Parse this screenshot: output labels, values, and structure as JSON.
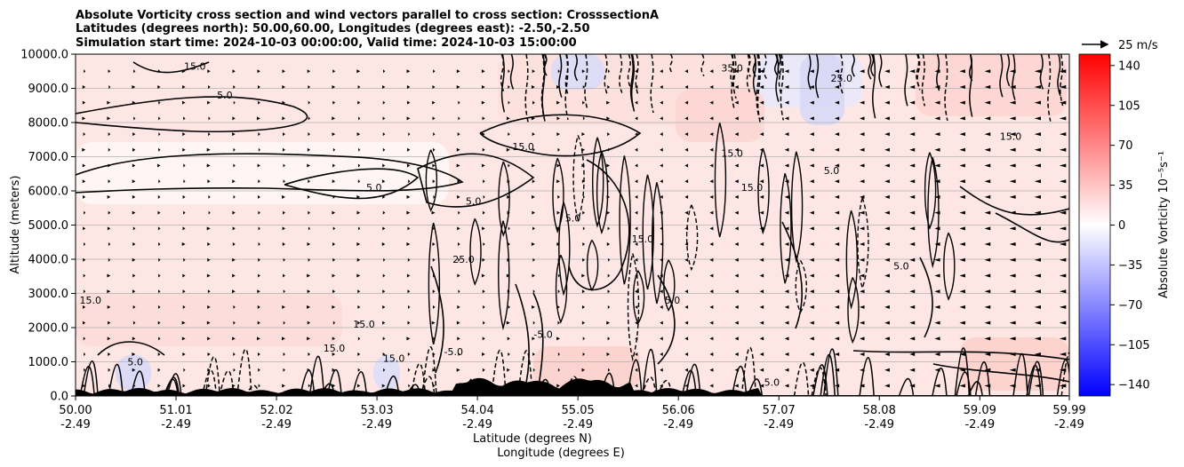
{
  "chart_data": {
    "type": "heatmap",
    "title_lines": [
      "Absolute Vorticity cross section and wind vectors parallel to cross section: CrosssectionA",
      "Latitudes (degrees north): 50.00,60.00, Longitudes (degrees east): -2.50,-2.50",
      "Simulation start time: 2024-10-03 00:00:00, Valid time: 2024-10-03 15:00:00"
    ],
    "ylabel": "Altitude (meters)",
    "xlabel_lines": [
      "Latitude (degrees N)",
      "Longitude (degrees E)"
    ],
    "ylim": [
      0,
      10000
    ],
    "xlim": [
      50.0,
      59.99
    ],
    "y_ticks": [
      "0.0",
      "1000.0",
      "2000.0",
      "3000.0",
      "4000.0",
      "5000.0",
      "6000.0",
      "7000.0",
      "8000.0",
      "9000.0",
      "10000.0"
    ],
    "x_ticks": [
      {
        "lat": "50.00",
        "lon": "-2.49"
      },
      {
        "lat": "51.01",
        "lon": "-2.49"
      },
      {
        "lat": "52.02",
        "lon": "-2.49"
      },
      {
        "lat": "53.03",
        "lon": "-2.49"
      },
      {
        "lat": "54.04",
        "lon": "-2.49"
      },
      {
        "lat": "55.05",
        "lon": "-2.49"
      },
      {
        "lat": "56.06",
        "lon": "-2.49"
      },
      {
        "lat": "57.07",
        "lon": "-2.49"
      },
      {
        "lat": "58.08",
        "lon": "-2.49"
      },
      {
        "lat": "59.09",
        "lon": "-2.49"
      },
      {
        "lat": "59.99",
        "lon": "-2.49"
      }
    ],
    "horizontal_grid": true,
    "colorbar": {
      "label": "Absolute Vorticity 10⁻⁵s⁻¹",
      "range": [
        -150,
        150
      ],
      "ticks": [
        "140",
        "105",
        "70",
        "35",
        "0",
        "−35",
        "−70",
        "−105",
        "−140"
      ],
      "tick_values": [
        140,
        105,
        70,
        35,
        0,
        -35,
        -70,
        -105,
        -140
      ],
      "colormap": "bwr",
      "low_color": "#0000ff",
      "mid_color": "#ffffff",
      "high_color": "#ff0000"
    },
    "quiver_key": {
      "label": "25 m/s",
      "speed": 25
    },
    "contour_labels": [
      "15.0",
      "5.0",
      "25.0",
      "35.0",
      "-5.0"
    ],
    "contour_label_samples": [
      {
        "lat": 51.2,
        "alt": 9550,
        "text": "15.0"
      },
      {
        "lat": 51.5,
        "alt": 8700,
        "text": "5.0"
      },
      {
        "lat": 54.5,
        "alt": 7200,
        "text": "15.0"
      },
      {
        "lat": 53.0,
        "alt": 6000,
        "text": "5.0"
      },
      {
        "lat": 54.0,
        "alt": 5600,
        "text": "5.0"
      },
      {
        "lat": 55.0,
        "alt": 5100,
        "text": "5.0"
      },
      {
        "lat": 56.6,
        "alt": 7000,
        "text": "15.0"
      },
      {
        "lat": 56.8,
        "alt": 6000,
        "text": "15.0"
      },
      {
        "lat": 57.6,
        "alt": 6500,
        "text": "5.0"
      },
      {
        "lat": 59.4,
        "alt": 7500,
        "text": "15.0"
      },
      {
        "lat": 55.7,
        "alt": 4500,
        "text": "15.0"
      },
      {
        "lat": 50.15,
        "alt": 2700,
        "text": "15.0"
      },
      {
        "lat": 52.9,
        "alt": 2000,
        "text": "15.0"
      },
      {
        "lat": 52.6,
        "alt": 1300,
        "text": "15.0"
      },
      {
        "lat": 53.2,
        "alt": 1000,
        "text": "15.0"
      },
      {
        "lat": 53.8,
        "alt": 1200,
        "text": "-5.0"
      },
      {
        "lat": 54.7,
        "alt": 1700,
        "text": "-5.0"
      },
      {
        "lat": 56.0,
        "alt": 2700,
        "text": "5.0"
      },
      {
        "lat": 56.6,
        "alt": 9500,
        "text": "35.0"
      },
      {
        "lat": 53.9,
        "alt": 3900,
        "text": "25.0"
      },
      {
        "lat": 58.3,
        "alt": 3700,
        "text": "5.0"
      },
      {
        "lat": 57.7,
        "alt": 9200,
        "text": "25.0"
      },
      {
        "lat": 50.6,
        "alt": 900,
        "text": "5.0"
      },
      {
        "lat": 57.0,
        "alt": 300,
        "text": "5.0"
      }
    ]
  }
}
